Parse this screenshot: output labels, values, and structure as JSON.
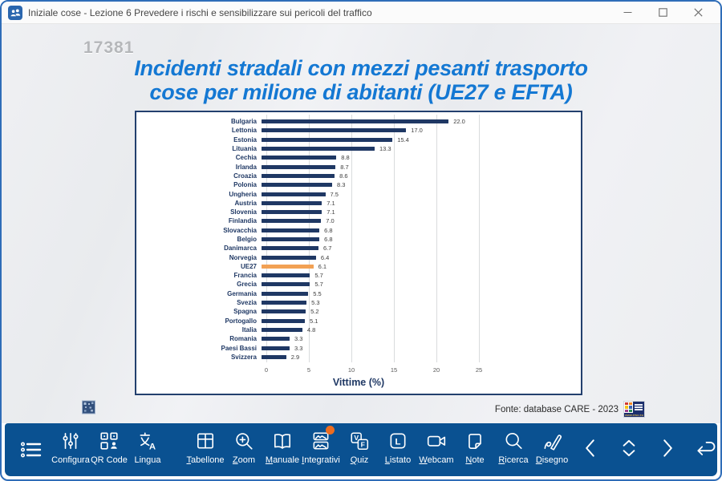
{
  "window": {
    "title": "Iniziale cose - Lezione 6 Prevedere i rischi e sensibilizzare sui pericoli del traffico"
  },
  "slide": {
    "code": "17381",
    "title_line1": "Incidenti stradali con mezzi pesanti trasporto",
    "title_line2": "cose per milione di abitanti (UE27 e EFTA)",
    "source": "Fonte: database CARE - 2023",
    "erso_url": "www.erso.eu"
  },
  "chart_data": {
    "type": "bar",
    "orientation": "horizontal",
    "title": "Incidenti stradali con mezzi pesanti trasporto cose per milione di abitanti (UE27 e EFTA)",
    "xlabel": "Vittime (%)",
    "xlim": [
      0,
      25
    ],
    "xticks": [
      0,
      5,
      10,
      15,
      20,
      25
    ],
    "grid": true,
    "categories": [
      "Bulgaria",
      "Lettonia",
      "Estonia",
      "Lituania",
      "Cechia",
      "Irlanda",
      "Croazia",
      "Polonia",
      "Ungheria",
      "Austria",
      "Slovenia",
      "Finlandia",
      "Slovacchia",
      "Belgio",
      "Danimarca",
      "Norvegia",
      "UE27",
      "Francia",
      "Grecia",
      "Germania",
      "Svezia",
      "Spagna",
      "Portogallo",
      "Italia",
      "Romania",
      "Paesi Bassi",
      "Svizzera"
    ],
    "values": [
      22.0,
      17.0,
      15.4,
      13.3,
      8.8,
      8.7,
      8.6,
      8.3,
      7.5,
      7.1,
      7.1,
      7.0,
      6.8,
      6.8,
      6.7,
      6.4,
      6.1,
      5.7,
      5.7,
      5.5,
      5.3,
      5.2,
      5.1,
      4.8,
      3.3,
      3.3,
      2.9
    ],
    "highlight_category": "UE27",
    "bar_color": "#1f3864",
    "highlight_color": "#f2a154"
  },
  "toolbar": {
    "items": [
      {
        "icon": "list-icon",
        "label": ""
      },
      {
        "icon": "sliders-icon",
        "label": "Configura"
      },
      {
        "icon": "qr-code-icon",
        "label": "QR Code"
      },
      {
        "icon": "translate-icon",
        "label": "Lingua"
      },
      {
        "icon": "table-grid-icon",
        "label": "Tabellone"
      },
      {
        "icon": "zoom-in-icon",
        "label": "Zoom"
      },
      {
        "icon": "open-book-icon",
        "label": "Manuale"
      },
      {
        "icon": "images-icon",
        "label": "Integrativi",
        "badge": true
      },
      {
        "icon": "true-false-icon",
        "label": "Quiz"
      },
      {
        "icon": "letter-l-icon",
        "label": "Listato"
      },
      {
        "icon": "webcam-icon",
        "label": "Webcam"
      },
      {
        "icon": "note-icon",
        "label": "Note"
      },
      {
        "icon": "search-icon",
        "label": "Ricerca"
      },
      {
        "icon": "pen-icon",
        "label": "Disegno"
      }
    ]
  }
}
